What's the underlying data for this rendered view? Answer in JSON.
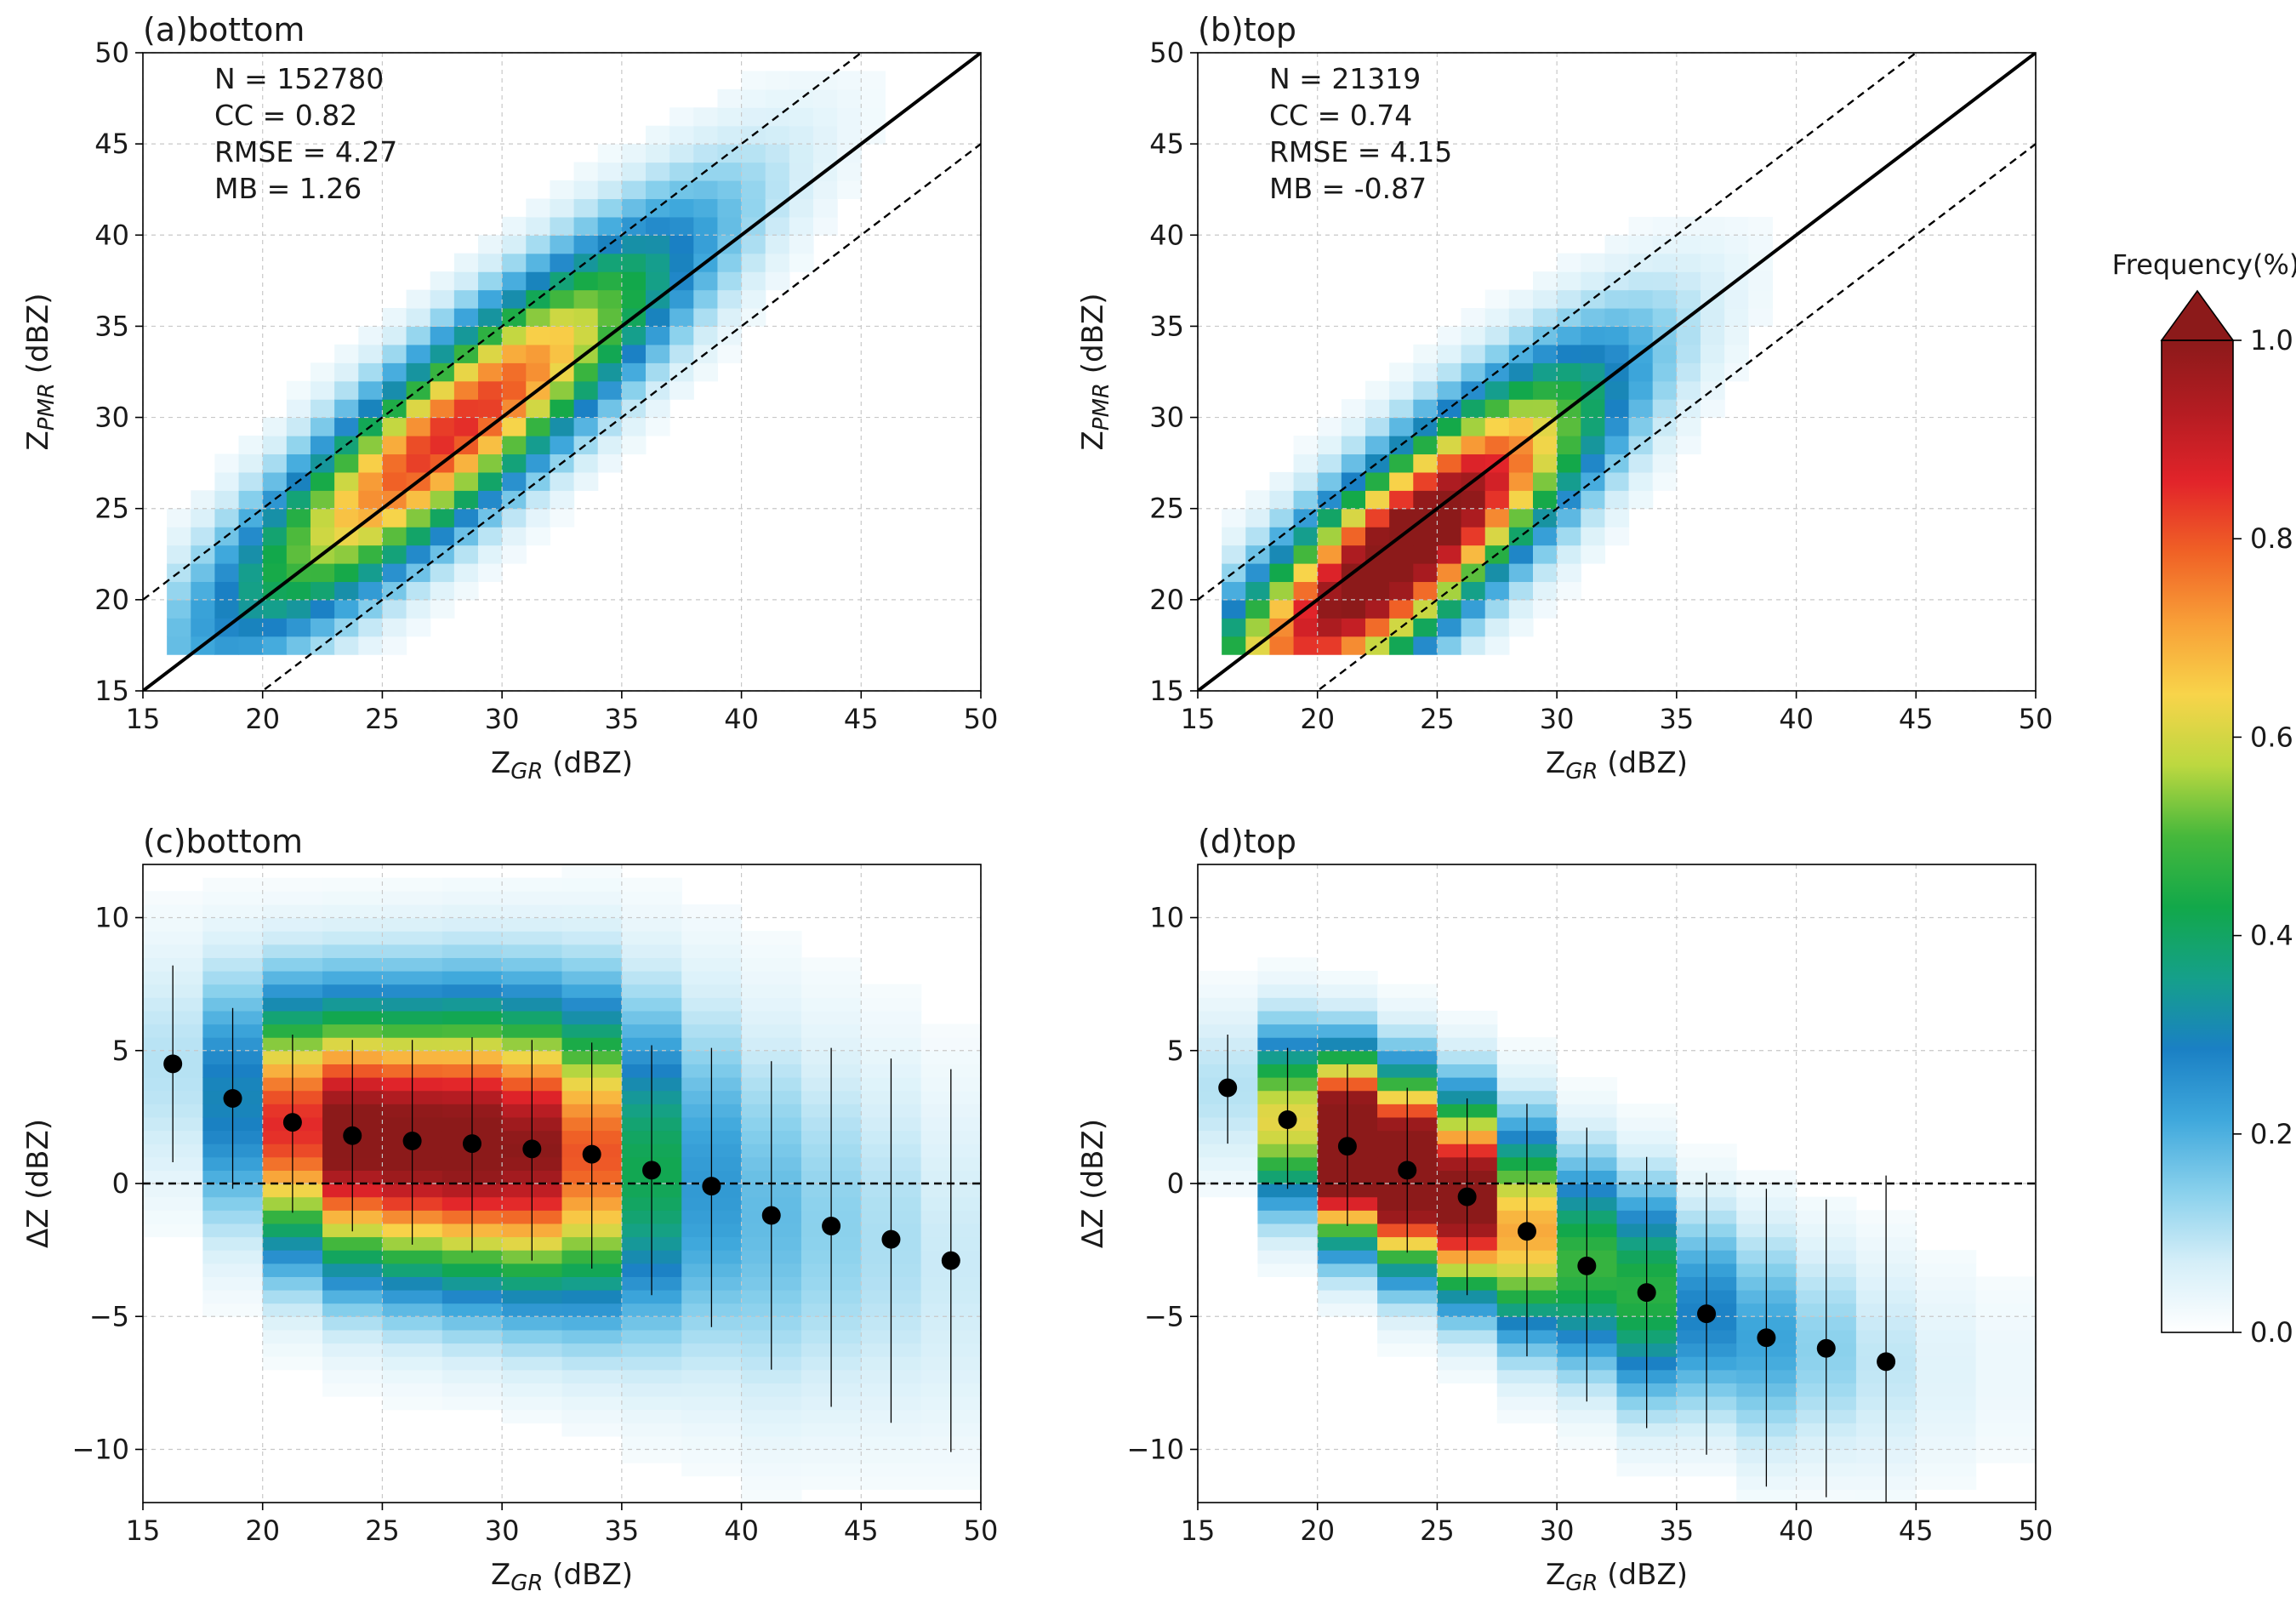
{
  "figure": {
    "colorbar": {
      "title": "Frequency(%)",
      "ticks": [
        "0.0",
        "0.2",
        "0.4",
        "0.6",
        "0.8",
        "1.0"
      ],
      "tick_values": [
        0,
        0.2,
        0.4,
        0.6,
        0.8,
        1.0
      ],
      "extend": "max",
      "colormap": [
        "#ffffff",
        "#d4eef8",
        "#88d0ec",
        "#3fa8dc",
        "#1a80c4",
        "#15a08a",
        "#12a84a",
        "#46b83c",
        "#bcd840",
        "#f8d44a",
        "#f8a038",
        "#f06226",
        "#e2242a",
        "#b41c22",
        "#8c1a1a"
      ]
    },
    "colors": {
      "points": "#000000",
      "reference_line": "#000000",
      "grid": "#c8c8c8"
    }
  },
  "chart_data": [
    {
      "type": "heatmap",
      "title": "(a)bottom",
      "xlabel": "Z_GR (dBZ)",
      "xlabel_main": "Z",
      "xlabel_sub": "GR",
      "xlabel_unit": " (dBZ)",
      "ylabel": "Z_PMR (dBZ)",
      "ylabel_main": "Z",
      "ylabel_sub": "PMR",
      "ylabel_unit": " (dBZ)",
      "xlim": [
        15,
        50
      ],
      "ylim": [
        15,
        50
      ],
      "xticks": [
        "15",
        "20",
        "25",
        "30",
        "35",
        "40",
        "45",
        "50"
      ],
      "yticks": [
        "15",
        "20",
        "25",
        "30",
        "35",
        "40",
        "45",
        "50"
      ],
      "bin_width": 1.0,
      "ridge_intercept": 1.26,
      "ridge_spread": 3.5,
      "x_center": 28,
      "x_spread": 6.5,
      "x_range": [
        16,
        46
      ],
      "peak_frequency": 0.85,
      "reference_lines": [
        {
          "name": "one-to-one",
          "slope": 1,
          "intercept": 0,
          "style": "solid"
        },
        {
          "name": "plus-5",
          "slope": 1,
          "intercept": 5,
          "style": "dashed"
        },
        {
          "name": "minus-5",
          "slope": 1,
          "intercept": -5,
          "style": "dashed"
        }
      ],
      "stats": [
        "N = 152780",
        "CC = 0.82",
        "RMSE = 4.27",
        "MB = 1.26"
      ]
    },
    {
      "type": "heatmap",
      "title": "(b)top",
      "xlabel": "Z_GR (dBZ)",
      "xlabel_main": "Z",
      "xlabel_sub": "GR",
      "xlabel_unit": " (dBZ)",
      "ylabel": "Z_PMR (dBZ)",
      "ylabel_main": "Z",
      "ylabel_sub": "PMR",
      "ylabel_unit": " (dBZ)",
      "xlim": [
        15,
        50
      ],
      "ylim": [
        15,
        50
      ],
      "xticks": [
        "15",
        "20",
        "25",
        "30",
        "35",
        "40",
        "45",
        "50"
      ],
      "yticks": [
        "15",
        "20",
        "25",
        "30",
        "35",
        "40",
        "45",
        "50"
      ],
      "bin_width": 1.0,
      "ridge_intercept": -0.87,
      "ridge_spread": 3.6,
      "x_center": 23.5,
      "x_spread": 5.5,
      "x_range": [
        16,
        46
      ],
      "peak_frequency": 1.15,
      "reference_lines": [
        {
          "name": "one-to-one",
          "slope": 1,
          "intercept": 0,
          "style": "solid"
        },
        {
          "name": "plus-5",
          "slope": 1,
          "intercept": 5,
          "style": "dashed"
        },
        {
          "name": "minus-5",
          "slope": 1,
          "intercept": -5,
          "style": "dashed"
        }
      ],
      "stats": [
        "N = 21319",
        "CC = 0.74",
        "RMSE = 4.15",
        "MB = -0.87"
      ]
    },
    {
      "type": "heatmap",
      "title": "(c)bottom",
      "xlabel": "Z_GR (dBZ)",
      "xlabel_main": "Z",
      "xlabel_sub": "GR",
      "xlabel_unit": " (dBZ)",
      "ylabel": "ΔZ (dBZ)",
      "ylabel_main": "ΔZ",
      "ylabel_sub": "",
      "ylabel_unit": " (dBZ)",
      "xlim": [
        15,
        50
      ],
      "ylim": [
        -12,
        12
      ],
      "xticks": [
        "15",
        "20",
        "25",
        "30",
        "35",
        "40",
        "45",
        "50"
      ],
      "yticks": [
        "−10",
        "−5",
        "0",
        "5",
        "10"
      ],
      "ytick_values": [
        -10,
        -5,
        0,
        5,
        10
      ],
      "zero_line": true,
      "column_width": 2.5,
      "y_bin": 0.5,
      "columns": [
        {
          "x0": 15.0,
          "mean": 4.4,
          "sd": 3.3,
          "peak": 0.1
        },
        {
          "x0": 17.5,
          "mean": 3.2,
          "sd": 3.3,
          "peak": 0.3
        },
        {
          "x0": 20.0,
          "mean": 2.2,
          "sd": 3.2,
          "peak": 0.85
        },
        {
          "x0": 22.5,
          "mean": 1.8,
          "sd": 3.3,
          "peak": 1.05
        },
        {
          "x0": 25.0,
          "mean": 1.6,
          "sd": 3.4,
          "peak": 1.05
        },
        {
          "x0": 27.5,
          "mean": 1.5,
          "sd": 3.5,
          "peak": 1.05
        },
        {
          "x0": 30.0,
          "mean": 1.3,
          "sd": 3.6,
          "peak": 1.0
        },
        {
          "x0": 32.5,
          "mean": 1.1,
          "sd": 3.8,
          "peak": 0.8
        },
        {
          "x0": 35.0,
          "mean": 0.5,
          "sd": 4.2,
          "peak": 0.42
        },
        {
          "x0": 37.5,
          "mean": -0.1,
          "sd": 4.6,
          "peak": 0.24
        },
        {
          "x0": 40.0,
          "mean": -1.2,
          "sd": 4.8,
          "peak": 0.18
        },
        {
          "x0": 42.5,
          "mean": -1.6,
          "sd": 4.8,
          "peak": 0.14
        },
        {
          "x0": 45.0,
          "mean": -2.1,
          "sd": 4.8,
          "peak": 0.11
        },
        {
          "x0": 47.5,
          "mean": -2.9,
          "sd": 4.8,
          "peak": 0.08
        }
      ],
      "points": [
        {
          "x": 16.25,
          "y": 4.5,
          "low": 0.8,
          "high": 8.2
        },
        {
          "x": 18.75,
          "y": 3.2,
          "low": -0.2,
          "high": 6.6
        },
        {
          "x": 21.25,
          "y": 2.3,
          "low": -1.1,
          "high": 5.6
        },
        {
          "x": 23.75,
          "y": 1.8,
          "low": -1.8,
          "high": 5.4
        },
        {
          "x": 26.25,
          "y": 1.6,
          "low": -2.3,
          "high": 5.4
        },
        {
          "x": 28.75,
          "y": 1.5,
          "low": -2.6,
          "high": 5.5
        },
        {
          "x": 31.25,
          "y": 1.3,
          "low": -2.9,
          "high": 5.4
        },
        {
          "x": 33.75,
          "y": 1.1,
          "low": -3.2,
          "high": 5.3
        },
        {
          "x": 36.25,
          "y": 0.5,
          "low": -4.2,
          "high": 5.2
        },
        {
          "x": 38.75,
          "y": -0.1,
          "low": -5.4,
          "high": 5.1
        },
        {
          "x": 41.25,
          "y": -1.2,
          "low": -7.0,
          "high": 4.6
        },
        {
          "x": 43.75,
          "y": -1.6,
          "low": -8.4,
          "high": 5.1
        },
        {
          "x": 46.25,
          "y": -2.1,
          "low": -9.0,
          "high": 4.7
        },
        {
          "x": 48.75,
          "y": -2.9,
          "low": -10.1,
          "high": 4.3
        }
      ]
    },
    {
      "type": "heatmap",
      "title": "(d)top",
      "xlabel": "Z_GR (dBZ)",
      "xlabel_main": "Z",
      "xlabel_sub": "GR",
      "xlabel_unit": " (dBZ)",
      "ylabel": "ΔZ (dBZ)",
      "ylabel_main": "ΔZ",
      "ylabel_sub": "",
      "ylabel_unit": " (dBZ)",
      "xlim": [
        15,
        50
      ],
      "ylim": [
        -12,
        12
      ],
      "xticks": [
        "15",
        "20",
        "25",
        "30",
        "35",
        "40",
        "45",
        "50"
      ],
      "yticks": [
        "−10",
        "−5",
        "0",
        "5",
        "10"
      ],
      "ytick_values": [
        -10,
        -5,
        0,
        5,
        10
      ],
      "zero_line": true,
      "column_width": 2.5,
      "y_bin": 0.5,
      "columns": [
        {
          "x0": 15.0,
          "mean": 3.6,
          "sd": 2.2,
          "peak": 0.1
        },
        {
          "x0": 17.5,
          "mean": 2.4,
          "sd": 2.2,
          "peak": 0.62
        },
        {
          "x0": 20.0,
          "mean": 1.4,
          "sd": 2.2,
          "peak": 1.4
        },
        {
          "x0": 22.5,
          "mean": 0.5,
          "sd": 2.3,
          "peak": 1.3
        },
        {
          "x0": 25.0,
          "mean": -0.5,
          "sd": 2.4,
          "peak": 1.1
        },
        {
          "x0": 27.5,
          "mean": -1.8,
          "sd": 2.6,
          "peak": 0.7
        },
        {
          "x0": 30.0,
          "mean": -3.0,
          "sd": 2.6,
          "peak": 0.48
        },
        {
          "x0": 32.5,
          "mean": -4.1,
          "sd": 2.7,
          "peak": 0.46
        },
        {
          "x0": 35.0,
          "mean": -4.9,
          "sd": 2.6,
          "peak": 0.28
        },
        {
          "x0": 37.5,
          "mean": -5.8,
          "sd": 2.8,
          "peak": 0.22
        },
        {
          "x0": 40.0,
          "mean": -6.2,
          "sd": 2.8,
          "peak": 0.14
        },
        {
          "x0": 42.5,
          "mean": -6.7,
          "sd": 3.0,
          "peak": 0.09
        },
        {
          "x0": 45.0,
          "mean": -7.0,
          "sd": 3.0,
          "peak": 0.05
        },
        {
          "x0": 47.5,
          "mean": -7.0,
          "sd": 3.0,
          "peak": 0.03
        }
      ],
      "points": [
        {
          "x": 16.25,
          "y": 3.6,
          "low": 1.5,
          "high": 5.6
        },
        {
          "x": 18.75,
          "y": 2.4,
          "low": -0.2,
          "high": 5.1
        },
        {
          "x": 21.25,
          "y": 1.4,
          "low": -1.6,
          "high": 4.5
        },
        {
          "x": 23.75,
          "y": 0.5,
          "low": -2.6,
          "high": 3.6
        },
        {
          "x": 26.25,
          "y": -0.5,
          "low": -4.2,
          "high": 3.2
        },
        {
          "x": 28.75,
          "y": -1.8,
          "low": -6.5,
          "high": 3.0
        },
        {
          "x": 31.25,
          "y": -3.1,
          "low": -8.2,
          "high": 2.1
        },
        {
          "x": 33.75,
          "y": -4.1,
          "low": -9.2,
          "high": 1.0
        },
        {
          "x": 36.25,
          "y": -4.9,
          "low": -10.2,
          "high": 0.4
        },
        {
          "x": 38.75,
          "y": -5.8,
          "low": -11.4,
          "high": -0.2
        },
        {
          "x": 41.25,
          "y": -6.2,
          "low": -11.8,
          "high": -0.6
        },
        {
          "x": 43.75,
          "y": -6.7,
          "low": -12.0,
          "high": 0.3
        }
      ]
    }
  ]
}
